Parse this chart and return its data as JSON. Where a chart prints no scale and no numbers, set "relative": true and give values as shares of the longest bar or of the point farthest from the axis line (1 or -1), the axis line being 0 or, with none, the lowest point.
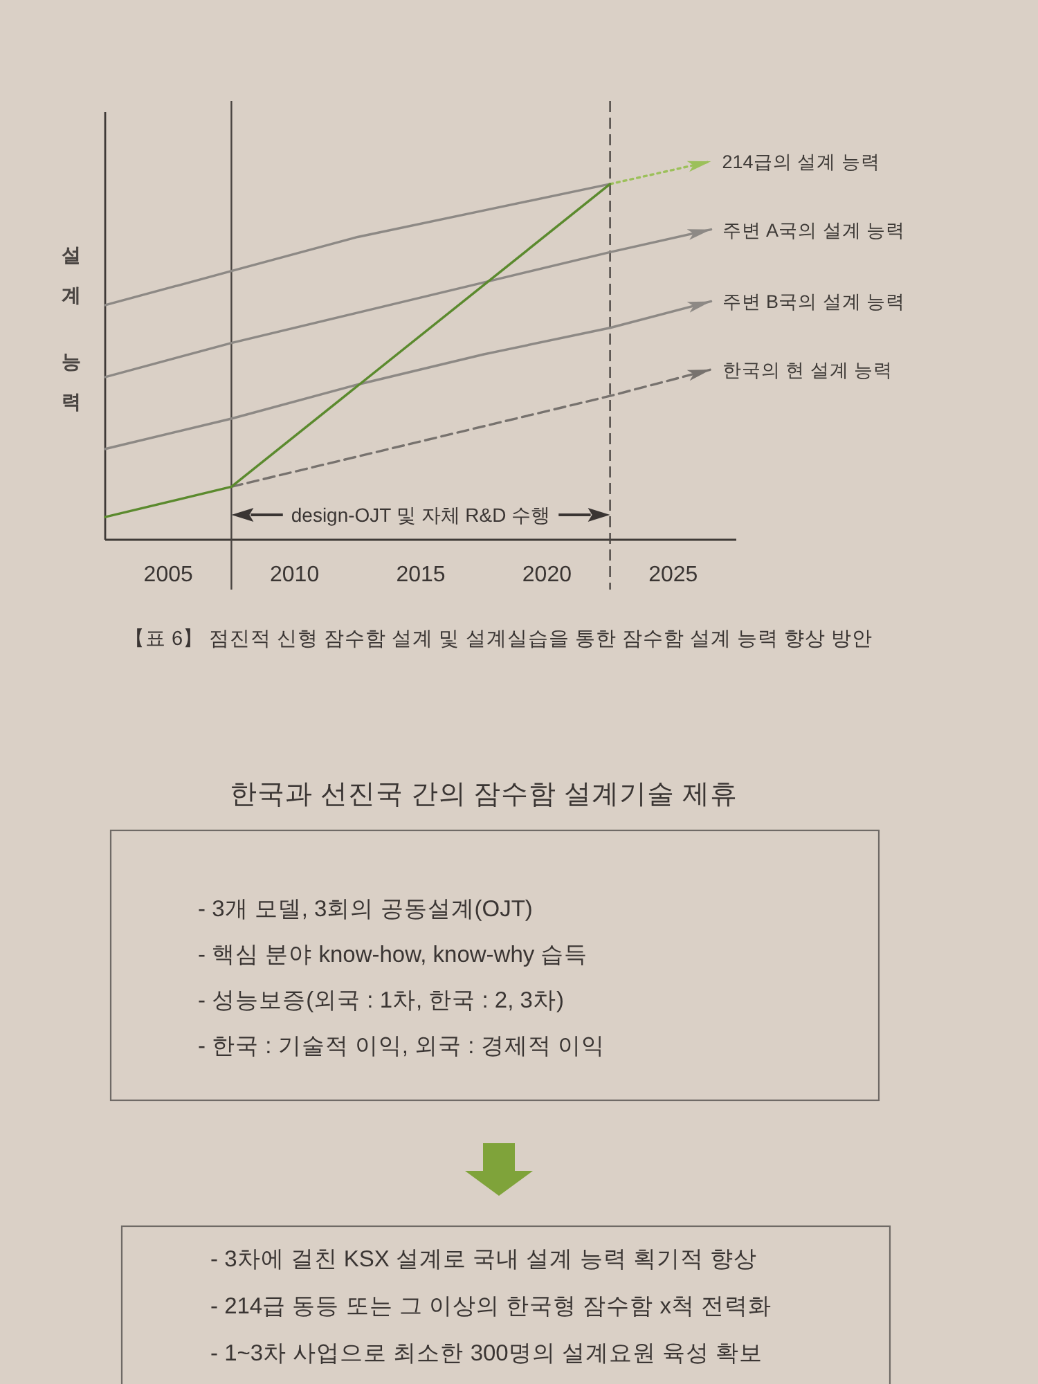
{
  "chart_data": [
    {
      "type": "line",
      "relative": true,
      "ylabel": "설계 능력",
      "xlim": [
        2002.5,
        2027.5
      ],
      "xticks": [
        2005,
        2010,
        2015,
        2020,
        2025
      ],
      "series": [
        {
          "x": [
            2002.5,
            2007.5,
            2012.5,
            2017.5,
            2022.5
          ],
          "values": [
            0.62,
            0.71,
            0.8,
            0.87,
            0.94
          ],
          "color": "#8d8985"
        },
        {
          "name": "214급의 설계 능력",
          "x": [
            2022.5,
            2026.5
          ],
          "values": [
            0.94,
            1.0
          ],
          "color": "#9cc05a",
          "line_style": "dotted"
        },
        {
          "name": "주변 A국의 설계 능력",
          "x": [
            2002.5,
            2007.5,
            2012.5,
            2017.5,
            2022.5,
            2026.5
          ],
          "values": [
            0.43,
            0.52,
            0.6,
            0.68,
            0.76,
            0.82
          ],
          "color": "#8d8985"
        },
        {
          "name": "주변 B국의 설계 능력",
          "x": [
            2002.5,
            2007.5,
            2012.5,
            2017.5,
            2022.5,
            2026.5
          ],
          "values": [
            0.24,
            0.32,
            0.41,
            0.49,
            0.56,
            0.63
          ],
          "color": "#8d8985"
        },
        {
          "name": "한국의 현 설계 능력",
          "x": [
            2007.5,
            2022.5,
            2026.5
          ],
          "values": [
            0.14,
            0.38,
            0.45
          ],
          "color": "#77726e",
          "line_style": "dashed"
        },
        {
          "x": [
            2002.5,
            2007.5,
            2022.5
          ],
          "values": [
            0.06,
            0.14,
            0.94
          ],
          "color": "#5b8a2e"
        }
      ],
      "ref_lines": [
        {
          "axis": "x",
          "value": 2007.5,
          "color": "#4a4542",
          "line_style": "solid"
        },
        {
          "axis": "x",
          "value": 2022.5,
          "color": "#4a4542",
          "line_style": "dashed"
        }
      ],
      "annotations": [
        "design-OJT 및 자체 R&D 수행",
        "【표 6】 점진적 신형 잠수함 설계 및 설계실습을 통한 잠수함 설계 능력 향상 방안"
      ]
    },
    {
      "type": "other",
      "title": "한국과 선진국 간의 잠수함 설계기술 제휴",
      "annotations": [
        "- 3개 모델, 3회의 공동설계(OJT)",
        "- 핵심 분야 know-how, know-why 습득",
        "- 성능보증(외국 : 1차,  한국 : 2, 3차)",
        "- 한국 : 기술적 이익,  외국 : 경제적 이익"
      ]
    },
    {
      "type": "other",
      "annotations": [
        "- 3차에 걸친 KSX 설계로 국내 설계 능력 획기적 향상",
        "- 214급 동등 또는 그 이상의 한국형 잠수함 x척 전력화",
        "- 1~3차 사업으로 최소한 300명의 설계요원 육성 확보"
      ]
    }
  ]
}
